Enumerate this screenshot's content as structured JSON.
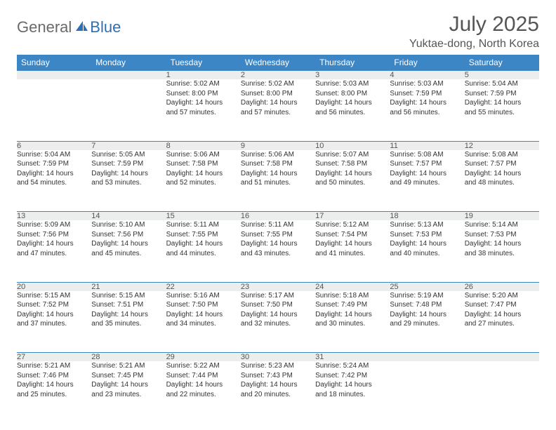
{
  "header": {
    "logo_part1": "General",
    "logo_part2": "Blue",
    "month_title": "July 2025",
    "location": "Yuktae-dong, North Korea"
  },
  "colors": {
    "header_blue": "#3d86c6",
    "daynum_bg": "#eceeee",
    "logo_gray": "#6a6a6a",
    "logo_blue": "#2f6fb3"
  },
  "weekdays": [
    "Sunday",
    "Monday",
    "Tuesday",
    "Wednesday",
    "Thursday",
    "Friday",
    "Saturday"
  ],
  "weeks": [
    [
      null,
      null,
      {
        "n": "1",
        "sr": "Sunrise: 5:02 AM",
        "ss": "Sunset: 8:00 PM",
        "d1": "Daylight: 14 hours",
        "d2": "and 57 minutes."
      },
      {
        "n": "2",
        "sr": "Sunrise: 5:02 AM",
        "ss": "Sunset: 8:00 PM",
        "d1": "Daylight: 14 hours",
        "d2": "and 57 minutes."
      },
      {
        "n": "3",
        "sr": "Sunrise: 5:03 AM",
        "ss": "Sunset: 8:00 PM",
        "d1": "Daylight: 14 hours",
        "d2": "and 56 minutes."
      },
      {
        "n": "4",
        "sr": "Sunrise: 5:03 AM",
        "ss": "Sunset: 7:59 PM",
        "d1": "Daylight: 14 hours",
        "d2": "and 56 minutes."
      },
      {
        "n": "5",
        "sr": "Sunrise: 5:04 AM",
        "ss": "Sunset: 7:59 PM",
        "d1": "Daylight: 14 hours",
        "d2": "and 55 minutes."
      }
    ],
    [
      {
        "n": "6",
        "sr": "Sunrise: 5:04 AM",
        "ss": "Sunset: 7:59 PM",
        "d1": "Daylight: 14 hours",
        "d2": "and 54 minutes."
      },
      {
        "n": "7",
        "sr": "Sunrise: 5:05 AM",
        "ss": "Sunset: 7:59 PM",
        "d1": "Daylight: 14 hours",
        "d2": "and 53 minutes."
      },
      {
        "n": "8",
        "sr": "Sunrise: 5:06 AM",
        "ss": "Sunset: 7:58 PM",
        "d1": "Daylight: 14 hours",
        "d2": "and 52 minutes."
      },
      {
        "n": "9",
        "sr": "Sunrise: 5:06 AM",
        "ss": "Sunset: 7:58 PM",
        "d1": "Daylight: 14 hours",
        "d2": "and 51 minutes."
      },
      {
        "n": "10",
        "sr": "Sunrise: 5:07 AM",
        "ss": "Sunset: 7:58 PM",
        "d1": "Daylight: 14 hours",
        "d2": "and 50 minutes."
      },
      {
        "n": "11",
        "sr": "Sunrise: 5:08 AM",
        "ss": "Sunset: 7:57 PM",
        "d1": "Daylight: 14 hours",
        "d2": "and 49 minutes."
      },
      {
        "n": "12",
        "sr": "Sunrise: 5:08 AM",
        "ss": "Sunset: 7:57 PM",
        "d1": "Daylight: 14 hours",
        "d2": "and 48 minutes."
      }
    ],
    [
      {
        "n": "13",
        "sr": "Sunrise: 5:09 AM",
        "ss": "Sunset: 7:56 PM",
        "d1": "Daylight: 14 hours",
        "d2": "and 47 minutes."
      },
      {
        "n": "14",
        "sr": "Sunrise: 5:10 AM",
        "ss": "Sunset: 7:56 PM",
        "d1": "Daylight: 14 hours",
        "d2": "and 45 minutes."
      },
      {
        "n": "15",
        "sr": "Sunrise: 5:11 AM",
        "ss": "Sunset: 7:55 PM",
        "d1": "Daylight: 14 hours",
        "d2": "and 44 minutes."
      },
      {
        "n": "16",
        "sr": "Sunrise: 5:11 AM",
        "ss": "Sunset: 7:55 PM",
        "d1": "Daylight: 14 hours",
        "d2": "and 43 minutes."
      },
      {
        "n": "17",
        "sr": "Sunrise: 5:12 AM",
        "ss": "Sunset: 7:54 PM",
        "d1": "Daylight: 14 hours",
        "d2": "and 41 minutes."
      },
      {
        "n": "18",
        "sr": "Sunrise: 5:13 AM",
        "ss": "Sunset: 7:53 PM",
        "d1": "Daylight: 14 hours",
        "d2": "and 40 minutes."
      },
      {
        "n": "19",
        "sr": "Sunrise: 5:14 AM",
        "ss": "Sunset: 7:53 PM",
        "d1": "Daylight: 14 hours",
        "d2": "and 38 minutes."
      }
    ],
    [
      {
        "n": "20",
        "sr": "Sunrise: 5:15 AM",
        "ss": "Sunset: 7:52 PM",
        "d1": "Daylight: 14 hours",
        "d2": "and 37 minutes."
      },
      {
        "n": "21",
        "sr": "Sunrise: 5:15 AM",
        "ss": "Sunset: 7:51 PM",
        "d1": "Daylight: 14 hours",
        "d2": "and 35 minutes."
      },
      {
        "n": "22",
        "sr": "Sunrise: 5:16 AM",
        "ss": "Sunset: 7:50 PM",
        "d1": "Daylight: 14 hours",
        "d2": "and 34 minutes."
      },
      {
        "n": "23",
        "sr": "Sunrise: 5:17 AM",
        "ss": "Sunset: 7:50 PM",
        "d1": "Daylight: 14 hours",
        "d2": "and 32 minutes."
      },
      {
        "n": "24",
        "sr": "Sunrise: 5:18 AM",
        "ss": "Sunset: 7:49 PM",
        "d1": "Daylight: 14 hours",
        "d2": "and 30 minutes."
      },
      {
        "n": "25",
        "sr": "Sunrise: 5:19 AM",
        "ss": "Sunset: 7:48 PM",
        "d1": "Daylight: 14 hours",
        "d2": "and 29 minutes."
      },
      {
        "n": "26",
        "sr": "Sunrise: 5:20 AM",
        "ss": "Sunset: 7:47 PM",
        "d1": "Daylight: 14 hours",
        "d2": "and 27 minutes."
      }
    ],
    [
      {
        "n": "27",
        "sr": "Sunrise: 5:21 AM",
        "ss": "Sunset: 7:46 PM",
        "d1": "Daylight: 14 hours",
        "d2": "and 25 minutes."
      },
      {
        "n": "28",
        "sr": "Sunrise: 5:21 AM",
        "ss": "Sunset: 7:45 PM",
        "d1": "Daylight: 14 hours",
        "d2": "and 23 minutes."
      },
      {
        "n": "29",
        "sr": "Sunrise: 5:22 AM",
        "ss": "Sunset: 7:44 PM",
        "d1": "Daylight: 14 hours",
        "d2": "and 22 minutes."
      },
      {
        "n": "30",
        "sr": "Sunrise: 5:23 AM",
        "ss": "Sunset: 7:43 PM",
        "d1": "Daylight: 14 hours",
        "d2": "and 20 minutes."
      },
      {
        "n": "31",
        "sr": "Sunrise: 5:24 AM",
        "ss": "Sunset: 7:42 PM",
        "d1": "Daylight: 14 hours",
        "d2": "and 18 minutes."
      },
      null,
      null
    ]
  ]
}
